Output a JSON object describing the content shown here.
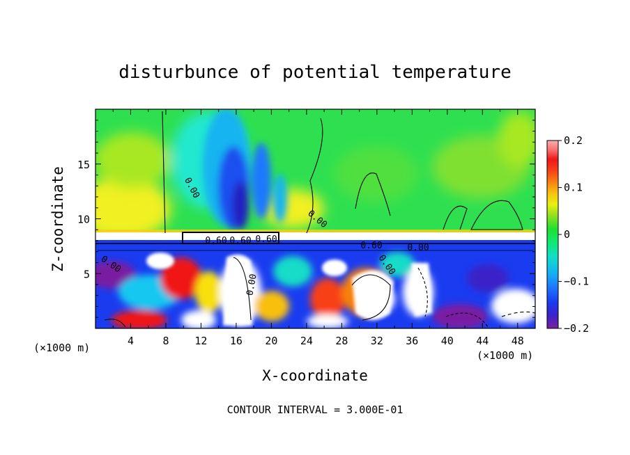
{
  "chart_data": {
    "type": "heatmap",
    "title": "disturbunce of potential temperature",
    "xlabel": "X-coordinate",
    "ylabel": "Z-coordinate",
    "x_unit_left": "(×1000 m)",
    "x_unit_right": "(×1000 m)",
    "footer": "CONTOUR INTERVAL = 3.000E-01",
    "xlim": [
      0,
      50
    ],
    "ylim": [
      0,
      20
    ],
    "x_ticks": [
      "4",
      "8",
      "12",
      "16",
      "20",
      "24",
      "28",
      "32",
      "36",
      "40",
      "44",
      "48"
    ],
    "y_ticks": [
      "5",
      "10",
      "15"
    ],
    "colorbar": {
      "range": [
        -0.2,
        0.2
      ],
      "tick_labels": [
        "0.2",
        "0.1",
        "0",
        "−0.1",
        "−0.2"
      ],
      "colors": [
        "#7a1fa2",
        "#3a22c8",
        "#1a3cf0",
        "#1e78ff",
        "#14b4f0",
        "#14dcc8",
        "#10e870",
        "#20e030",
        "#90e020",
        "#e8f010",
        "#f8c010",
        "#f88010",
        "#f84018",
        "#f01818",
        "#f87070",
        "#f8b0b0"
      ]
    },
    "contour_labels": [
      "0.00",
      "0.00",
      "0.00",
      "0.00",
      "0.00",
      "0.60",
      "0.60",
      "0.60",
      "0.60",
      "0.00"
    ]
  }
}
